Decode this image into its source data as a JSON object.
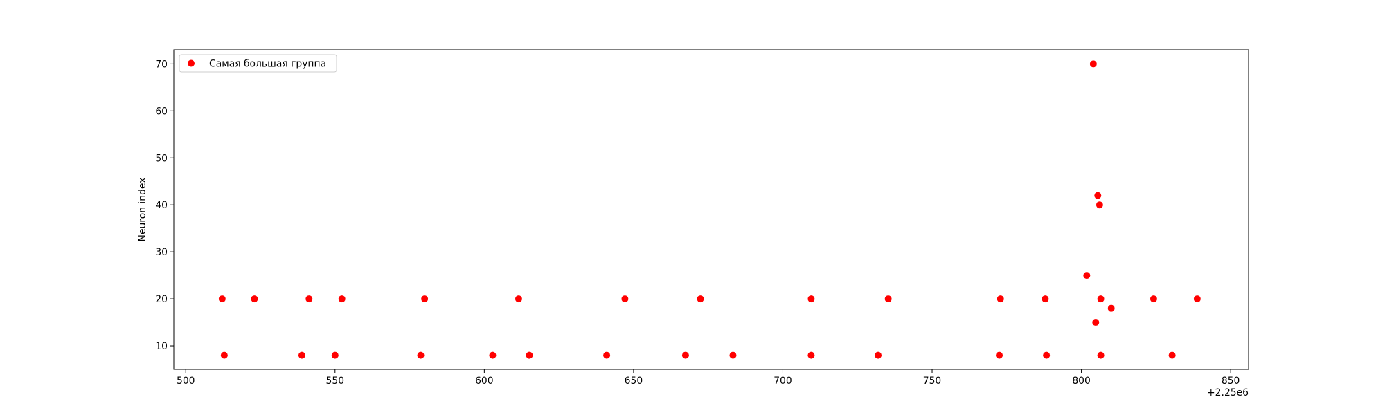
{
  "chart_data": {
    "type": "scatter",
    "title": "",
    "xlabel": "",
    "ylabel": "Neuron index",
    "x_offset_label": "+2.25e6",
    "xlim": [
      496,
      856
    ],
    "ylim": [
      5,
      73
    ],
    "x_ticks": [
      500,
      550,
      600,
      650,
      700,
      750,
      800,
      850
    ],
    "y_ticks": [
      10,
      20,
      30,
      40,
      50,
      60,
      70
    ],
    "grid": false,
    "legend_position": "top-left",
    "series": [
      {
        "name": "Самая большая группа",
        "color": "#ff0000",
        "marker": "circle",
        "points": [
          [
            512.2,
            20
          ],
          [
            523.0,
            20
          ],
          [
            541.3,
            20
          ],
          [
            552.3,
            20
          ],
          [
            580.0,
            20
          ],
          [
            611.5,
            20
          ],
          [
            647.1,
            20
          ],
          [
            672.4,
            20
          ],
          [
            709.5,
            20
          ],
          [
            735.3,
            20
          ],
          [
            772.9,
            20
          ],
          [
            787.9,
            20
          ],
          [
            806.5,
            20
          ],
          [
            824.2,
            20
          ],
          [
            838.8,
            20
          ],
          [
            512.9,
            8
          ],
          [
            538.9,
            8
          ],
          [
            550.0,
            8
          ],
          [
            578.7,
            8
          ],
          [
            602.8,
            8
          ],
          [
            615.1,
            8
          ],
          [
            641.0,
            8
          ],
          [
            667.4,
            8
          ],
          [
            683.3,
            8
          ],
          [
            709.5,
            8
          ],
          [
            731.9,
            8
          ],
          [
            772.5,
            8
          ],
          [
            788.3,
            8
          ],
          [
            806.5,
            8
          ],
          [
            830.4,
            8
          ],
          [
            804.0,
            70
          ],
          [
            805.5,
            42
          ],
          [
            806.1,
            40
          ],
          [
            801.8,
            25
          ],
          [
            804.8,
            15
          ],
          [
            810.0,
            18
          ]
        ]
      }
    ]
  }
}
